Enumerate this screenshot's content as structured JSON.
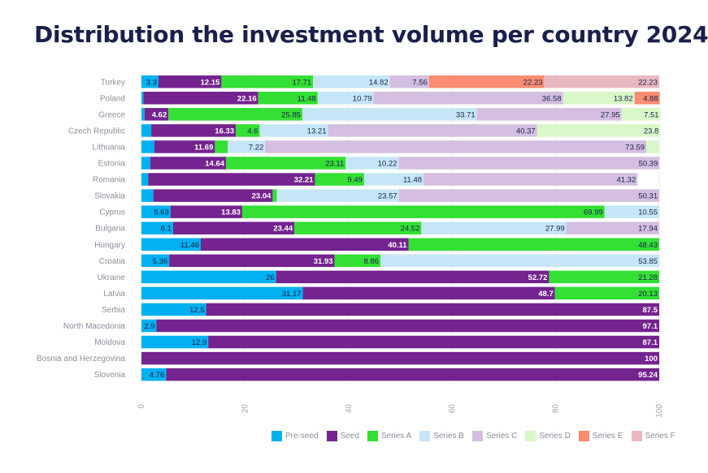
{
  "chart_data": {
    "type": "bar",
    "orientation": "horizontal",
    "stacked": true,
    "title": "Distribution the investment volume per country 2024",
    "xlim": [
      0,
      100
    ],
    "xticks": [
      "0",
      "20",
      "40",
      "60",
      "80",
      "100"
    ],
    "legend_position": "bottom-right",
    "categories": [
      "Turkey",
      "Poland",
      "Greece",
      "Czech Republic",
      "Lithuania",
      "Estonia",
      "Romania",
      "Slovakia",
      "Cyprus",
      "Bulgaria",
      "Hungary",
      "Croatia",
      "Ukraine",
      "Latvia",
      "Serbia",
      "North Macedonia",
      "Moldova",
      "Bosnia and Herzegovina",
      "Slovenia"
    ],
    "series": [
      {
        "name": "Pre-seed",
        "color": "#00b0f0",
        "label_color": "#1a1f4b",
        "values": [
          3.3,
          0.4,
          0.6,
          1.9,
          2.5,
          1.7,
          1.3,
          2.3,
          5.63,
          6.1,
          11.46,
          5.36,
          26,
          31.17,
          12.5,
          2.9,
          12.9,
          0,
          4.76
        ],
        "labels": [
          "3.3",
          "",
          "",
          "",
          "",
          "",
          "",
          "",
          "5.63",
          "6.1",
          "11.46",
          "5.36",
          "26",
          "31.17",
          "12.5",
          "2.9",
          "12.9",
          "",
          "4.76"
        ]
      },
      {
        "name": "Seed",
        "color": "#74238f",
        "label_color": "#ffffff",
        "values": [
          12.15,
          22.16,
          4.62,
          16.33,
          11.69,
          14.64,
          32.21,
          23.04,
          13.83,
          23.44,
          40.11,
          31.93,
          52.72,
          48.7,
          87.5,
          97.1,
          87.1,
          100,
          95.24
        ],
        "labels": [
          "12.15",
          "22.16",
          "4.62",
          "16.33",
          "11.69",
          "14.64",
          "32.21",
          "23.04",
          "13.83",
          "23.44",
          "40.11",
          "31.93",
          "52.72",
          "48.7",
          "87.5",
          "97.1",
          "87.1",
          "100",
          "95.24"
        ]
      },
      {
        "name": "Series A",
        "color": "#33e033",
        "label_color": "#1a1f4b",
        "values": [
          17.71,
          11.48,
          25.85,
          4.6,
          2.5,
          23.11,
          9.49,
          0.8,
          69.99,
          24.52,
          48.43,
          8.86,
          21.28,
          20.13,
          0,
          0,
          0,
          0,
          0
        ],
        "labels": [
          "17.71",
          "11.48",
          "25.85",
          "4.6",
          "",
          "23.11",
          "9.49",
          "",
          "69.99",
          "24.52",
          "48.43",
          "8.86",
          "21.28",
          "20.13",
          "",
          "",
          "",
          "",
          ""
        ]
      },
      {
        "name": "Series B",
        "color": "#c6e6f7",
        "label_color": "#1a1f4b",
        "values": [
          14.82,
          10.79,
          33.71,
          13.21,
          7.22,
          10.22,
          11.48,
          23.57,
          10.55,
          27.99,
          0,
          53.85,
          0,
          0,
          0,
          0,
          0,
          0,
          0
        ],
        "labels": [
          "14.82",
          "10.79",
          "33.71",
          "13.21",
          "7.22",
          "10.22",
          "11.48",
          "23.57",
          "10.55",
          "27.99",
          "",
          "53.85",
          "",
          "",
          "",
          "",
          "",
          "",
          ""
        ]
      },
      {
        "name": "Series C",
        "color": "#d4bfe0",
        "label_color": "#1a1f4b",
        "values": [
          7.56,
          36.58,
          27.95,
          40.37,
          73.59,
          50.39,
          41.32,
          50.31,
          0,
          17.94,
          0,
          0,
          0,
          0,
          0,
          0,
          0,
          0,
          0
        ],
        "labels": [
          "7.56",
          "36.58",
          "27.95",
          "40.37",
          "73.59",
          "50.39",
          "41.32",
          "50.31",
          "",
          "17.94",
          "",
          "",
          "",
          "",
          "",
          "",
          "",
          "",
          ""
        ]
      },
      {
        "name": "Series D",
        "color": "#d9f7c8",
        "label_color": "#1a1f4b",
        "values": [
          0,
          13.82,
          7.51,
          23.8,
          2.5,
          0,
          0,
          0,
          0,
          0,
          0,
          0,
          0,
          0,
          0,
          0,
          0,
          0,
          0
        ],
        "labels": [
          "",
          "13.82",
          "7.51",
          "23.8",
          "",
          "",
          "",
          "",
          "",
          "",
          "",
          "",
          "",
          "",
          "",
          "",
          "",
          "",
          ""
        ]
      },
      {
        "name": "Series E",
        "color": "#fb8c72",
        "label_color": "#1a1f4b",
        "values": [
          22.23,
          4.88,
          0,
          0,
          0,
          0,
          0,
          0,
          0,
          0,
          0,
          0,
          0,
          0,
          0,
          0,
          0,
          0,
          0
        ],
        "labels": [
          "22.23",
          "4.88",
          "",
          "",
          "",
          "",
          "",
          "",
          "",
          "",
          "",
          "",
          "",
          "",
          "",
          "",
          "",
          "",
          ""
        ]
      },
      {
        "name": "Series F",
        "color": "#eab8c0",
        "label_color": "#1a1f4b",
        "values": [
          22.23,
          0,
          0,
          0,
          0,
          0,
          0,
          0,
          0,
          0,
          0,
          0,
          0,
          0,
          0,
          0,
          0,
          0,
          0
        ],
        "labels": [
          "22.23",
          "",
          "",
          "",
          "",
          "",
          "",
          "",
          "",
          "",
          "",
          "",
          "",
          "",
          "",
          "",
          "",
          "",
          ""
        ]
      }
    ]
  }
}
